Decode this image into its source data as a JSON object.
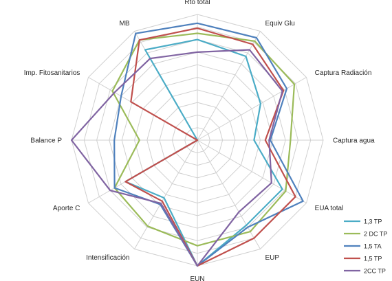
{
  "chart_data": {
    "type": "radar",
    "title": "",
    "axes": [
      "Rto total",
      "Equiv Glu",
      "Captura Radiación",
      "Captura agua",
      "EUA total",
      "EUP",
      "EUN",
      "Intensificación",
      "Aporte C",
      "Balance P",
      "Imp. Fitosanitarios",
      "MB"
    ],
    "rlim": [
      0,
      10
    ],
    "grid": true,
    "legend_position": "right-bottom",
    "series": [
      {
        "name": "1,3 TP",
        "color": "#4BACC6",
        "values": [
          8.0,
          7.7,
          5.8,
          4.5,
          7.8,
          7.8,
          10.0,
          5.3,
          6.6,
          0.0,
          0.0,
          8.3
        ]
      },
      {
        "name": "2 DC TP",
        "color": "#9BBB59",
        "values": [
          8.5,
          9.1,
          8.9,
          7.4,
          8.1,
          8.4,
          8.4,
          7.9,
          7.6,
          4.6,
          7.8,
          9.2
        ]
      },
      {
        "name": "1,5 TA",
        "color": "#4F81BD",
        "values": [
          9.3,
          9.4,
          8.2,
          5.8,
          9.7,
          8.0,
          10.0,
          5.9,
          7.6,
          6.6,
          7.0,
          9.8
        ]
      },
      {
        "name": "1,5 TP",
        "color": "#C0504D",
        "values": [
          8.9,
          8.8,
          7.9,
          5.4,
          9.0,
          9.0,
          10.0,
          5.6,
          6.6,
          0.0,
          6.1,
          9.2
        ]
      },
      {
        "name": "2CC TP",
        "color": "#8064A2",
        "values": [
          7.0,
          8.3,
          7.8,
          5.7,
          6.8,
          6.6,
          10.0,
          5.8,
          8.0,
          10.0,
          7.6,
          7.5
        ]
      }
    ]
  }
}
